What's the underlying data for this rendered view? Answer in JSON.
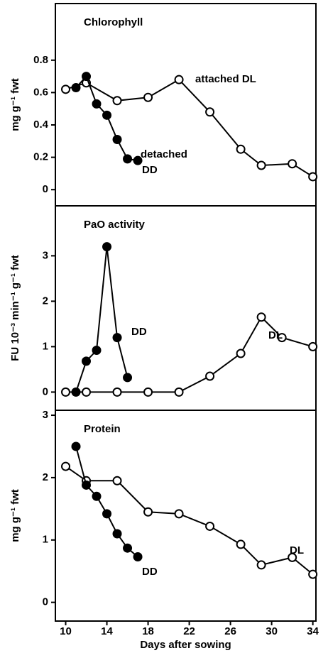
{
  "chart_data": [
    {
      "type": "line",
      "title": "Chlorophyll",
      "ylabel": "mg g⁻¹ fwt",
      "xlim": [
        9,
        34.3
      ],
      "ylim": [
        -0.1,
        1.15
      ],
      "yticks": [
        0,
        0.2,
        0.4,
        0.6,
        0.8
      ],
      "annotations": [
        "attached DL",
        "detached",
        "DD"
      ],
      "series": [
        {
          "marker": "open",
          "x": [
            10,
            12,
            15,
            18,
            21,
            24,
            27,
            29,
            32,
            34
          ],
          "values": [
            0.62,
            0.66,
            0.55,
            0.57,
            0.68,
            0.48,
            0.25,
            0.15,
            0.16,
            0.08
          ]
        },
        {
          "marker": "filled",
          "x": [
            11,
            12,
            13,
            14,
            15,
            16,
            17
          ],
          "values": [
            0.63,
            0.7,
            0.53,
            0.46,
            0.31,
            0.19,
            0.18
          ]
        }
      ]
    },
    {
      "type": "line",
      "title": "PaO activity",
      "ylabel": "FU 10⁻³ min⁻¹ g⁻¹ fwt",
      "xlim": [
        9,
        34.3
      ],
      "ylim": [
        -0.4,
        4.1
      ],
      "yticks": [
        0,
        1,
        2,
        3
      ],
      "annotations": [
        "DD",
        "DL"
      ],
      "series": [
        {
          "marker": "open",
          "x": [
            10,
            12,
            15,
            18,
            21,
            24,
            27,
            29,
            31,
            34
          ],
          "values": [
            0,
            0,
            0,
            0,
            0,
            0.35,
            0.85,
            1.65,
            1.2,
            1.0
          ]
        },
        {
          "marker": "filled",
          "x": [
            11,
            12,
            13,
            14,
            15,
            16
          ],
          "values": [
            0,
            0.68,
            0.92,
            3.2,
            1.2,
            0.32
          ]
        }
      ]
    },
    {
      "type": "line",
      "title": "Protein",
      "ylabel": "mg g⁻¹ fwt",
      "xlabel": "Days after sowing",
      "xlim": [
        9,
        34.3
      ],
      "xticks": [
        10,
        14,
        18,
        22,
        26,
        30,
        34
      ],
      "ylim": [
        -0.3,
        3.08
      ],
      "yticks": [
        0,
        1,
        2,
        3
      ],
      "annotations": [
        "DD",
        "DL"
      ],
      "series": [
        {
          "marker": "open",
          "x": [
            10,
            12,
            15,
            18,
            21,
            24,
            27,
            29,
            32,
            34
          ],
          "values": [
            2.18,
            1.95,
            1.95,
            1.45,
            1.42,
            1.22,
            0.93,
            0.6,
            0.72,
            0.45
          ]
        },
        {
          "marker": "filled",
          "x": [
            11,
            12,
            13,
            14,
            15,
            16,
            17
          ],
          "values": [
            2.5,
            1.88,
            1.7,
            1.42,
            1.1,
            0.87,
            0.73
          ]
        }
      ]
    }
  ]
}
